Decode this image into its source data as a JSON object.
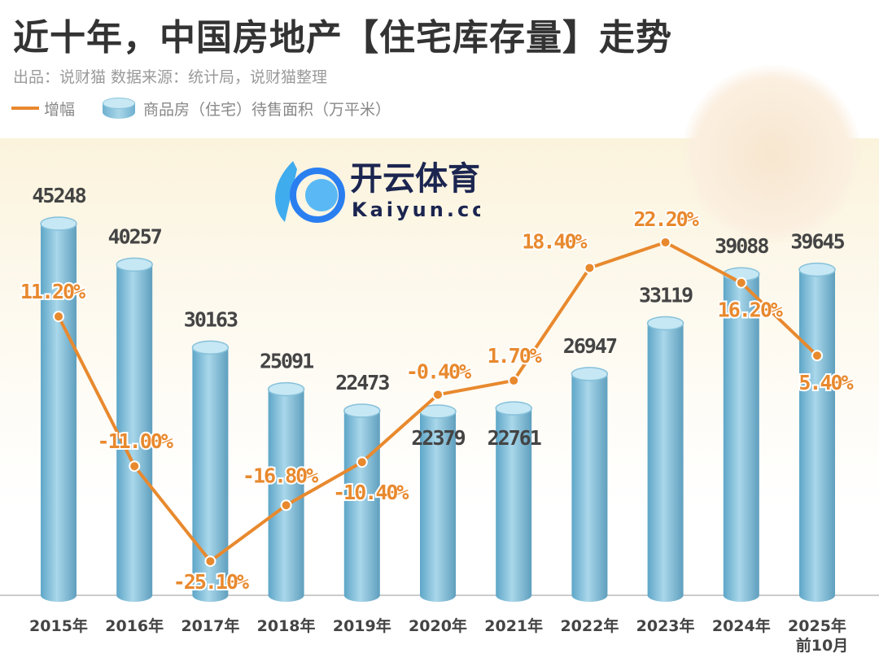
{
  "header": {
    "title": "近十年，中国房地产【住宅库存量】走势",
    "subtitle": "出品：说财猫 数据来源：统计局，说财猫整理"
  },
  "watermark": {
    "name": "开云体育",
    "url": "Kaiyun.com"
  },
  "chart_data": {
    "type": "bar+line",
    "title": "近十年，中国房地产【住宅库存量】走势",
    "categories": [
      "2015年",
      "2016年",
      "2017年",
      "2018年",
      "2019年",
      "2020年",
      "2021年",
      "2022年",
      "2023年",
      "2024年",
      "2025年"
    ],
    "category_notes": {
      "2025年": "前10月"
    },
    "legend": {
      "position": "top-left",
      "entries": [
        "增幅",
        "商品房（住宅）待售面积（万平米）"
      ]
    },
    "series": [
      {
        "name": "商品房（住宅）待售面积（万平米）",
        "type": "bar",
        "values": [
          45248,
          40257,
          30163,
          25091,
          22473,
          22379,
          22761,
          26947,
          33119,
          39088,
          39645
        ],
        "color": "#7fbcd8"
      },
      {
        "name": "增幅",
        "type": "line",
        "values": [
          11.2,
          -11.0,
          -25.1,
          -16.8,
          -10.4,
          -0.4,
          1.7,
          18.4,
          22.2,
          16.2,
          5.4
        ],
        "labels": [
          "11.20%",
          "-11.00%",
          "-25.10%",
          "-16.80%",
          "-10.40%",
          "-0.40%",
          "1.70%",
          "18.40%",
          "22.20%",
          "16.20%",
          "5.40%"
        ],
        "color": "#e8892e"
      }
    ],
    "grid": false
  }
}
